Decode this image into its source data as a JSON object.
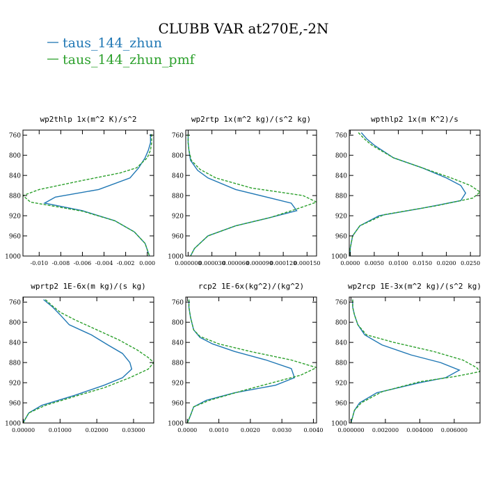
{
  "figure": {
    "title": "CLUBB VAR at270E,-2N",
    "legend": [
      {
        "name": "taus_144_zhun",
        "color": "#1f77b4",
        "dash": "solid"
      },
      {
        "name": "taus_144_zhun_pmf",
        "color": "#2ca02c",
        "dash": "dashed"
      }
    ]
  },
  "chart_data": [
    {
      "type": "line",
      "title": "wp2thlp  1x(m^2 K)/s^2",
      "xlim": [
        -0.0115,
        0.0006
      ],
      "xticks": [
        -0.01,
        -0.008,
        -0.006,
        -0.004,
        -0.002,
        0.0
      ],
      "xtick_labels": [
        "-0.010",
        "-0.008",
        "-0.006",
        "-0.004",
        "-0.002",
        "0.000"
      ],
      "ylim": [
        1000,
        750
      ],
      "yticks": [
        760,
        800,
        840,
        880,
        920,
        960,
        1000
      ],
      "series": [
        {
          "name": "taus_144_zhun",
          "color": "#1f77b4",
          "dash": "solid",
          "points": [
            [
              0.0003,
              758
            ],
            [
              0.0003,
              775
            ],
            [
              0.0001,
              790
            ],
            [
              -0.0002,
              805
            ],
            [
              -0.0008,
              825
            ],
            [
              -0.0016,
              845
            ],
            [
              -0.0045,
              868
            ],
            [
              -0.0085,
              883
            ],
            [
              -0.0095,
              895
            ],
            [
              -0.006,
              910
            ],
            [
              -0.003,
              930
            ],
            [
              -0.0012,
              952
            ],
            [
              -0.0002,
              975
            ],
            [
              0.0002,
              1000
            ]
          ]
        },
        {
          "name": "taus_144_zhun_pmf",
          "color": "#2ca02c",
          "dash": "dashed",
          "points": [
            [
              0.0004,
              758
            ],
            [
              0.0004,
              775
            ],
            [
              0.0003,
              790
            ],
            [
              0.0,
              805
            ],
            [
              -0.001,
              825
            ],
            [
              -0.0025,
              835
            ],
            [
              -0.006,
              850
            ],
            [
              -0.01,
              868
            ],
            [
              -0.0115,
              880
            ],
            [
              -0.0108,
              893
            ],
            [
              -0.006,
              911
            ],
            [
              -0.003,
              930
            ],
            [
              -0.0012,
              952
            ],
            [
              -0.0002,
              975
            ],
            [
              0.0002,
              1000
            ]
          ]
        }
      ]
    },
    {
      "type": "line",
      "title": "wp2rtp  1x(m^2 kg)/(s^2 kg)",
      "xlim": [
        -3e-06,
        0.000162
      ],
      "xticks": [
        0.0,
        3e-05,
        6e-05,
        9e-05,
        0.00012,
        0.00015
      ],
      "xtick_labels": [
        "0.000000",
        "0.000030",
        "0.000060",
        "0.000090",
        "0.000120",
        "0.000150"
      ],
      "ylim": [
        1000,
        750
      ],
      "yticks": [
        760,
        800,
        840,
        880,
        920,
        960,
        1000
      ],
      "series": [
        {
          "name": "taus_144_zhun",
          "color": "#1f77b4",
          "dash": "solid",
          "points": [
            [
              0.0,
              758
            ],
            [
              0.0,
              775
            ],
            [
              1e-06,
              790
            ],
            [
              3e-06,
              810
            ],
            [
              1.2e-05,
              830
            ],
            [
              2.5e-05,
              845
            ],
            [
              6e-05,
              868
            ],
            [
              0.00013,
              895
            ],
            [
              0.000137,
              910
            ],
            [
              0.0001,
              925
            ],
            [
              6e-05,
              940
            ],
            [
              2.5e-05,
              960
            ],
            [
              8e-06,
              985
            ],
            [
              3e-06,
              1000
            ]
          ]
        },
        {
          "name": "taus_144_zhun_pmf",
          "color": "#2ca02c",
          "dash": "dashed",
          "points": [
            [
              0.0,
              758
            ],
            [
              0.0,
              775
            ],
            [
              1e-06,
              790
            ],
            [
              4e-06,
              810
            ],
            [
              1.5e-05,
              828
            ],
            [
              3.5e-05,
              845
            ],
            [
              8e-05,
              865
            ],
            [
              0.000145,
              880
            ],
            [
              0.000162,
              893
            ],
            [
              0.00014,
              905
            ],
            [
              0.000105,
              923
            ],
            [
              6e-05,
              940
            ],
            [
              2.5e-05,
              960
            ],
            [
              8e-06,
              985
            ],
            [
              3e-06,
              1000
            ]
          ]
        }
      ]
    },
    {
      "type": "line",
      "title": "wpthlp2  1x(m K^2)/s",
      "xlim": [
        -0.0002,
        0.027
      ],
      "xticks": [
        0.0,
        0.005,
        0.01,
        0.015,
        0.02,
        0.025
      ],
      "xtick_labels": [
        "0.0000",
        "0.0050",
        "0.0100",
        "0.0150",
        "0.0200",
        "0.0250"
      ],
      "ylim": [
        1000,
        750
      ],
      "yticks": [
        760,
        800,
        840,
        880,
        920,
        960,
        1000
      ],
      "series": [
        {
          "name": "taus_144_zhun",
          "color": "#1f77b4",
          "dash": "solid",
          "points": [
            [
              0.0023,
              755
            ],
            [
              0.0035,
              768
            ],
            [
              0.005,
              780
            ],
            [
              0.009,
              805
            ],
            [
              0.015,
              825
            ],
            [
              0.02,
              845
            ],
            [
              0.023,
              860
            ],
            [
              0.024,
              875
            ],
            [
              0.023,
              890
            ],
            [
              0.015,
              905
            ],
            [
              0.006,
              920
            ],
            [
              0.002,
              940
            ],
            [
              0.0005,
              960
            ],
            [
              0.0,
              985
            ],
            [
              0.0,
              1000
            ]
          ]
        },
        {
          "name": "taus_144_zhun_pmf",
          "color": "#2ca02c",
          "dash": "dashed",
          "points": [
            [
              0.0017,
              755
            ],
            [
              0.003,
              768
            ],
            [
              0.0045,
              780
            ],
            [
              0.009,
              805
            ],
            [
              0.015,
              825
            ],
            [
              0.021,
              845
            ],
            [
              0.025,
              860
            ],
            [
              0.027,
              873
            ],
            [
              0.0255,
              885
            ],
            [
              0.018,
              900
            ],
            [
              0.007,
              918
            ],
            [
              0.002,
              940
            ],
            [
              0.0005,
              960
            ],
            [
              0.0,
              985
            ],
            [
              0.0,
              1000
            ]
          ]
        }
      ]
    },
    {
      "type": "line",
      "title": "wprtp2  1E-6x(m kg)/(s kg)",
      "xlim": [
        -0.0001,
        0.0355
      ],
      "xticks": [
        0.0,
        0.01,
        0.02,
        0.03
      ],
      "xtick_labels": [
        "0.00000",
        "0.01000",
        "0.02000",
        "0.03000"
      ],
      "ylim": [
        1000,
        750
      ],
      "yticks": [
        760,
        800,
        840,
        880,
        920,
        960,
        1000
      ],
      "series": [
        {
          "name": "taus_144_zhun",
          "color": "#1f77b4",
          "dash": "solid",
          "points": [
            [
              0.0055,
              755
            ],
            [
              0.008,
              770
            ],
            [
              0.01,
              785
            ],
            [
              0.0125,
              805
            ],
            [
              0.0185,
              825
            ],
            [
              0.023,
              845
            ],
            [
              0.027,
              862
            ],
            [
              0.029,
              880
            ],
            [
              0.0295,
              893
            ],
            [
              0.027,
              910
            ],
            [
              0.022,
              925
            ],
            [
              0.014,
              945
            ],
            [
              0.005,
              965
            ],
            [
              0.0015,
              980
            ],
            [
              0.0003,
              995
            ],
            [
              0.0,
              1000
            ]
          ]
        },
        {
          "name": "taus_144_zhun_pmf",
          "color": "#2ca02c",
          "dash": "dashed",
          "points": [
            [
              0.006,
              755
            ],
            [
              0.008,
              768
            ],
            [
              0.01,
              780
            ],
            [
              0.014,
              795
            ],
            [
              0.02,
              815
            ],
            [
              0.026,
              835
            ],
            [
              0.031,
              855
            ],
            [
              0.034,
              870
            ],
            [
              0.0355,
              880
            ],
            [
              0.034,
              893
            ],
            [
              0.029,
              910
            ],
            [
              0.022,
              930
            ],
            [
              0.015,
              945
            ],
            [
              0.006,
              965
            ],
            [
              0.0015,
              980
            ],
            [
              0.0003,
              995
            ],
            [
              0.0,
              1000
            ]
          ]
        }
      ]
    },
    {
      "type": "line",
      "title": "rcp2  1E-6x(kg^2)/(kg^2)",
      "xlim": [
        -5e-05,
        0.0041
      ],
      "xticks": [
        0.0,
        0.001,
        0.002,
        0.003,
        0.004
      ],
      "xtick_labels": [
        "0.0000",
        "0.0010",
        "0.0020",
        "0.0030",
        "0.0040"
      ],
      "ylim": [
        1000,
        750
      ],
      "yticks": [
        760,
        800,
        840,
        880,
        920,
        960,
        1000
      ],
      "series": [
        {
          "name": "taus_144_zhun",
          "color": "#1f77b4",
          "dash": "solid",
          "points": [
            [
              5e-05,
              755
            ],
            [
              5e-05,
              770
            ],
            [
              0.0001,
              790
            ],
            [
              0.0002,
              815
            ],
            [
              0.0004,
              830
            ],
            [
              0.0008,
              843
            ],
            [
              0.0015,
              858
            ],
            [
              0.0025,
              875
            ],
            [
              0.0033,
              892
            ],
            [
              0.0034,
              910
            ],
            [
              0.0028,
              925
            ],
            [
              0.0015,
              940
            ],
            [
              0.0006,
              955
            ],
            [
              0.0002,
              968
            ],
            [
              0.0001,
              985
            ],
            [
              0.0,
              1000
            ]
          ]
        },
        {
          "name": "taus_144_zhun_pmf",
          "color": "#2ca02c",
          "dash": "dashed",
          "points": [
            [
              5e-05,
              755
            ],
            [
              5e-05,
              770
            ],
            [
              0.0001,
              790
            ],
            [
              0.0002,
              815
            ],
            [
              0.0004,
              828
            ],
            [
              0.001,
              843
            ],
            [
              0.002,
              858
            ],
            [
              0.0033,
              875
            ],
            [
              0.0041,
              890
            ],
            [
              0.0036,
              905
            ],
            [
              0.003,
              915
            ],
            [
              0.0018,
              935
            ],
            [
              0.0007,
              955
            ],
            [
              0.0002,
              968
            ],
            [
              0.0001,
              985
            ],
            [
              0.0,
              1000
            ]
          ]
        }
      ]
    },
    {
      "type": "line",
      "title": "wp2rcp  1E-3x(m^2 kg)/(s^2 kg)",
      "xlim": [
        -0.0001,
        0.0075
      ],
      "xticks": [
        0.0,
        0.002,
        0.004,
        0.006
      ],
      "xtick_labels": [
        "0.000000",
        "0.002000",
        "0.004000",
        "0.006000"
      ],
      "ylim": [
        1000,
        750
      ],
      "yticks": [
        760,
        800,
        840,
        880,
        920,
        960,
        1000
      ],
      "series": [
        {
          "name": "taus_144_zhun",
          "color": "#1f77b4",
          "dash": "solid",
          "points": [
            [
              0.0001,
              755
            ],
            [
              0.0001,
              770
            ],
            [
              0.0002,
              785
            ],
            [
              0.0004,
              805
            ],
            [
              0.0008,
              825
            ],
            [
              0.0018,
              845
            ],
            [
              0.0035,
              865
            ],
            [
              0.0052,
              880
            ],
            [
              0.0063,
              895
            ],
            [
              0.0055,
              910
            ],
            [
              0.004,
              920
            ],
            [
              0.0015,
              940
            ],
            [
              0.0005,
              960
            ],
            [
              0.0002,
              975
            ],
            [
              0.0,
              1000
            ]
          ]
        },
        {
          "name": "taus_144_zhun_pmf",
          "color": "#2ca02c",
          "dash": "dashed",
          "points": [
            [
              0.0001,
              755
            ],
            [
              0.0001,
              770
            ],
            [
              0.0002,
              785
            ],
            [
              0.0004,
              805
            ],
            [
              0.0009,
              825
            ],
            [
              0.0025,
              840
            ],
            [
              0.0048,
              858
            ],
            [
              0.0065,
              875
            ],
            [
              0.0073,
              890
            ],
            [
              0.0075,
              898
            ],
            [
              0.006,
              908
            ],
            [
              0.004,
              918
            ],
            [
              0.0018,
              938
            ],
            [
              0.0006,
              960
            ],
            [
              0.0002,
              975
            ],
            [
              0.0,
              1000
            ]
          ]
        }
      ]
    }
  ]
}
